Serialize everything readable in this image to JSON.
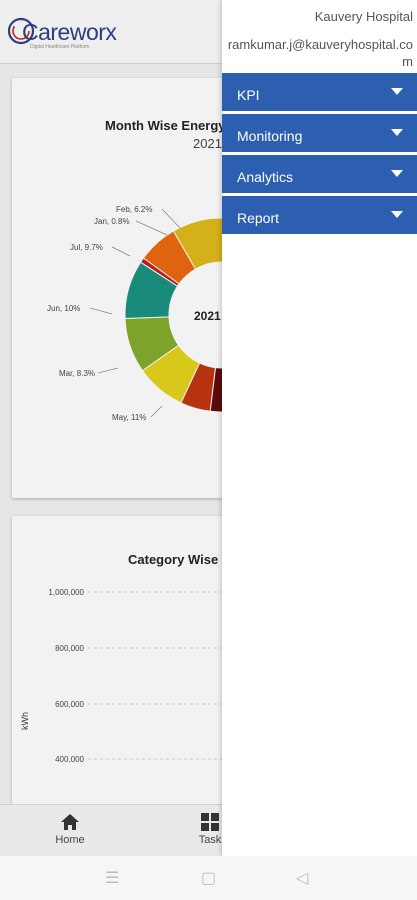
{
  "app": {
    "logo_text": "Careworx",
    "logo_sub": "Digital Healthcare Platform"
  },
  "card1": {
    "title": "Month Wise Energy",
    "subtitle": "2021",
    "center_label": "2021",
    "chart_data": {
      "type": "pie",
      "categories": [
        "Feb",
        "Jan",
        "Jul",
        "Jun",
        "Mar",
        "May"
      ],
      "values": [
        6.2,
        0.8,
        9.7,
        10,
        8.3,
        11
      ],
      "labels": [
        "Feb, 6.2%",
        "Jan, 0.8%",
        "Jul, 9.7%",
        "Jun, 10%",
        "Mar, 8.3%",
        "May, 11%"
      ]
    }
  },
  "card2": {
    "title": "Category Wise",
    "ylabel": "kWh",
    "chart_data": {
      "type": "bar",
      "ylabel": "kWh",
      "yticks": [
        "1,000,000",
        "800,000",
        "600,000",
        "400,000"
      ]
    }
  },
  "bottom_nav": [
    {
      "label": "Home",
      "icon": "home-icon"
    },
    {
      "label": "Task",
      "icon": "grid-icon"
    }
  ],
  "drawer": {
    "hospital": "Kauvery Hospital",
    "email": "ramkumar.j@kauveryhospital.com",
    "menu": [
      {
        "label": "KPI"
      },
      {
        "label": "Monitoring"
      },
      {
        "label": "Analytics"
      },
      {
        "label": "Report"
      }
    ]
  },
  "colors": {
    "menu_bg": "#2c5fb0",
    "brand_blue": "#2b3f7f",
    "brand_red": "#c2241a"
  }
}
